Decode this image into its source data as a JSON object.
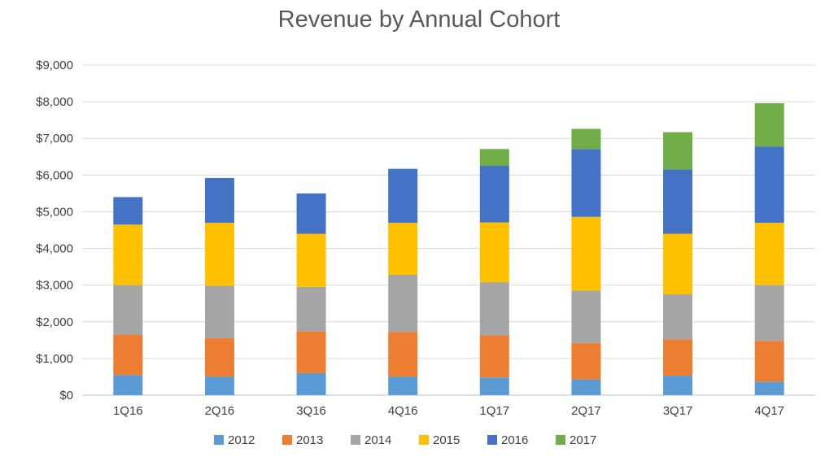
{
  "chart_data": {
    "type": "bar",
    "stacked": true,
    "title": "Revenue by Annual Cohort",
    "xlabel": "",
    "ylabel": "",
    "categories": [
      "1Q16",
      "2Q16",
      "3Q16",
      "4Q16",
      "1Q17",
      "2Q17",
      "3Q17",
      "4Q17"
    ],
    "y_tick_labels": [
      "$0",
      "$1,000",
      "$2,000",
      "$3,000",
      "$4,000",
      "$5,000",
      "$6,000",
      "$7,000",
      "$8,000",
      "$9,000"
    ],
    "ylim": [
      0,
      9000
    ],
    "grid": true,
    "legend_position": "bottom",
    "series": [
      {
        "name": "2012",
        "color": "#5B9BD5",
        "values": [
          550,
          500,
          600,
          500,
          480,
          430,
          530,
          370
        ]
      },
      {
        "name": "2013",
        "color": "#ED7D31",
        "values": [
          1100,
          1050,
          1130,
          1220,
          1150,
          990,
          990,
          1110
        ]
      },
      {
        "name": "2014",
        "color": "#A5A5A5",
        "values": [
          1350,
          1430,
          1220,
          1560,
          1450,
          1430,
          1230,
          1520
        ]
      },
      {
        "name": "2015",
        "color": "#FFC000",
        "values": [
          1650,
          1720,
          1450,
          1420,
          1630,
          2010,
          1650,
          1700
        ]
      },
      {
        "name": "2016",
        "color": "#4472C4",
        "values": [
          750,
          1220,
          1100,
          1470,
          1550,
          1850,
          1750,
          2080
        ]
      },
      {
        "name": "2017",
        "color": "#70AD47",
        "values": [
          0,
          0,
          0,
          0,
          450,
          550,
          1020,
          1180
        ]
      }
    ]
  }
}
